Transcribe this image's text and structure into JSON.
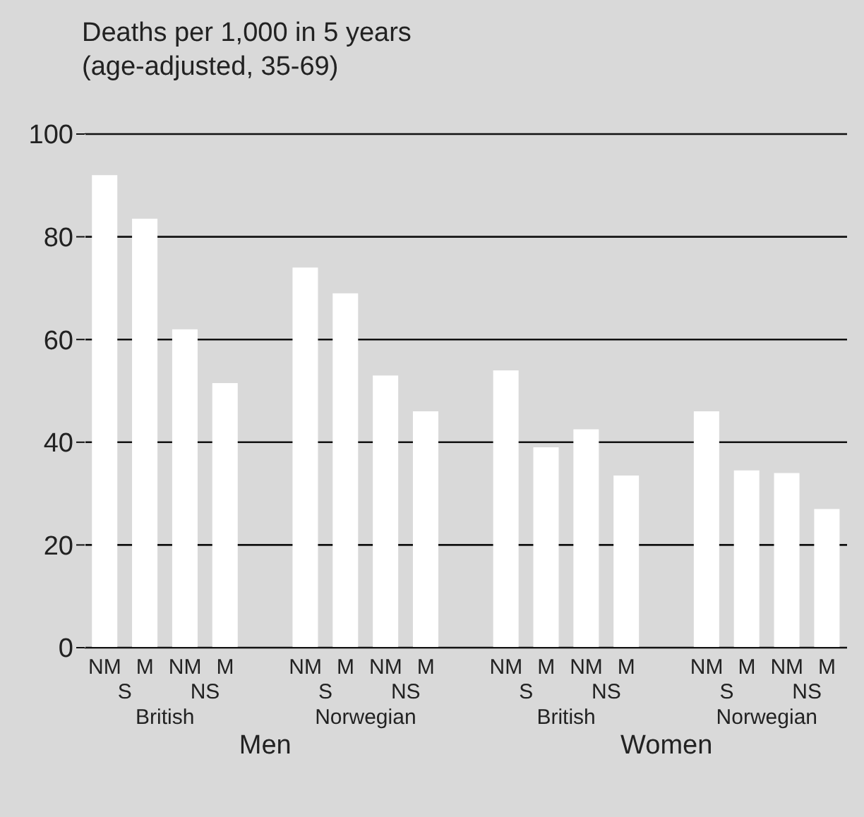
{
  "chart_data": {
    "type": "bar",
    "title": "Deaths per 1,000 in 5 years",
    "subtitle": "(age-adjusted, 35-69)",
    "categories": [
      "NM",
      "M",
      "NM",
      "M",
      "NM",
      "M",
      "NM",
      "M",
      "NM",
      "M",
      "NM",
      "M",
      "NM",
      "M",
      "NM",
      "M"
    ],
    "values": [
      92,
      83.5,
      62,
      51.5,
      74,
      69,
      53,
      46,
      54,
      39,
      42.5,
      33.5,
      46,
      34.5,
      34,
      27
    ],
    "color": "#ffffff",
    "annotations": [
      "S",
      "NS",
      "S",
      "NS",
      "S",
      "NS",
      "S",
      "NS",
      "British",
      "Norwegian",
      "British",
      "Norwegian",
      "Men",
      "Women"
    ],
    "ylim": [
      0,
      100
    ],
    "yticks": [
      0,
      20,
      40,
      60,
      80,
      100
    ],
    "grid": "y"
  }
}
